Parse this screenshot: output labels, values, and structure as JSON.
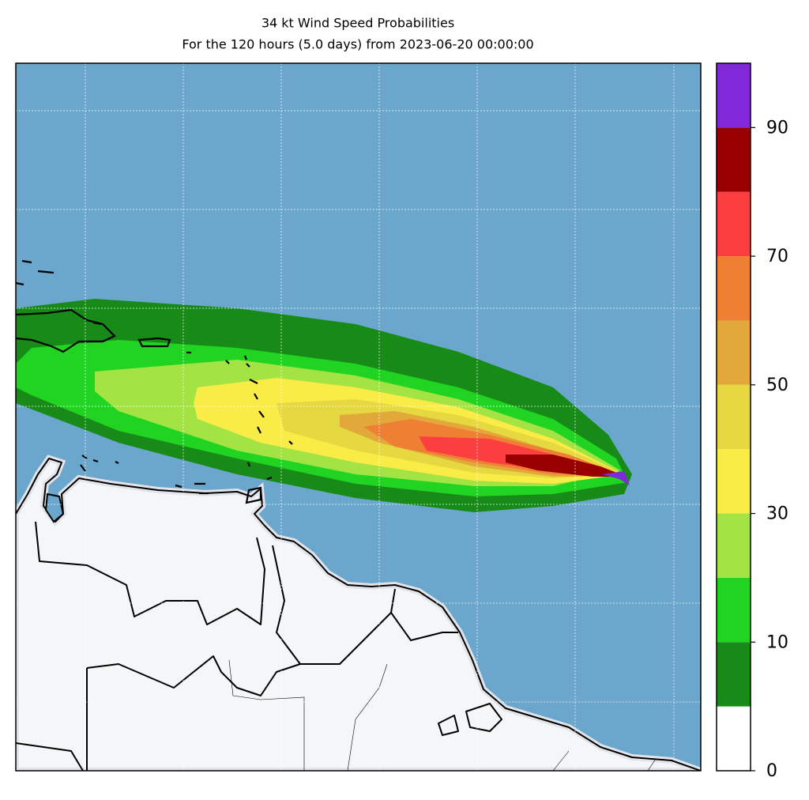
{
  "chart_data": {
    "type": "map",
    "title": "34 kt Wind Speed Probabilities",
    "subtitle": "For the 120 hours (5.0 days) from 2023-06-20 00:00:00",
    "colorbar": {
      "levels": [
        0,
        5,
        10,
        20,
        30,
        40,
        50,
        60,
        70,
        80,
        90,
        100
      ],
      "colors": [
        "#ffffff",
        "#178a17",
        "#22d422",
        "#a3e444",
        "#f9ec47",
        "#e6d840",
        "#e2a93a",
        "#ee7f33",
        "#fb3f40",
        "#980000",
        "#8129d9"
      ],
      "ticks": [
        0,
        10,
        30,
        50,
        70,
        90
      ]
    }
  }
}
